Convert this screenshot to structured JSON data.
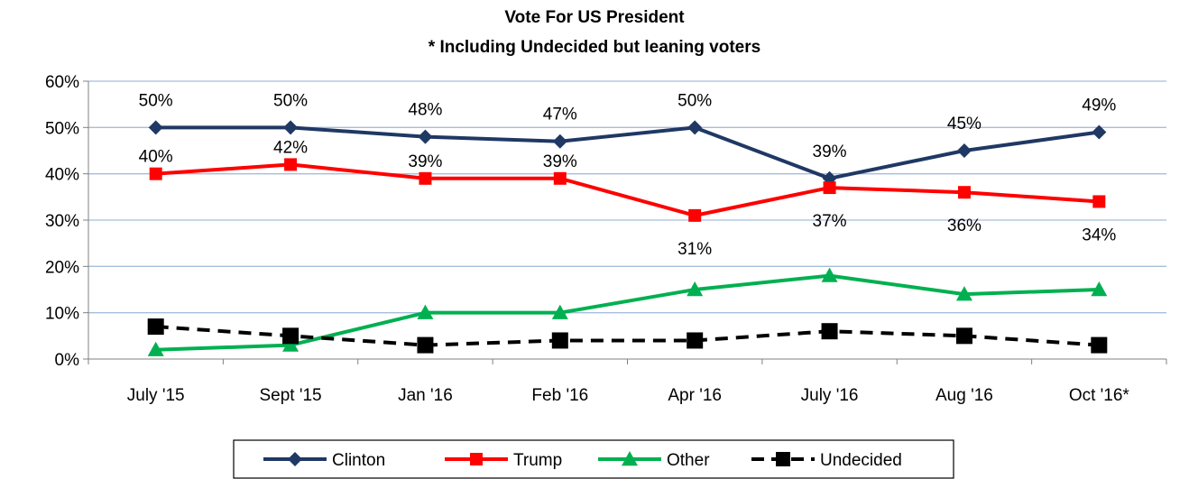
{
  "chart_data": {
    "type": "line",
    "title": "Vote For US President",
    "subtitle": "* Including Undecided but leaning voters",
    "xlabel": "",
    "ylabel": "",
    "categories": [
      "July '15",
      "Sept '15",
      "Jan '16",
      "Feb '16",
      "Apr '16",
      "July '16",
      "Aug '16",
      "Oct '16*"
    ],
    "y_ticks": [
      "0%",
      "10%",
      "20%",
      "30%",
      "40%",
      "50%",
      "60%"
    ],
    "ylim": [
      0,
      60
    ],
    "grid": true,
    "legend_position": "bottom",
    "series": [
      {
        "name": "Clinton",
        "color": "#1F3864",
        "marker": "diamond",
        "dash": false,
        "values": [
          50,
          50,
          48,
          47,
          50,
          39,
          45,
          49
        ],
        "labels": [
          "50%",
          "50%",
          "48%",
          "47%",
          "50%",
          "39%",
          "45%",
          "49%"
        ]
      },
      {
        "name": "Trump",
        "color": "#FF0000",
        "marker": "square",
        "dash": false,
        "values": [
          40,
          42,
          39,
          39,
          31,
          37,
          36,
          34
        ],
        "labels": [
          "40%",
          "42%",
          "39%",
          "39%",
          "31%",
          "37%",
          "36%",
          "34%"
        ]
      },
      {
        "name": "Other",
        "color": "#00B050",
        "marker": "triangle",
        "dash": false,
        "values": [
          2,
          3,
          10,
          10,
          15,
          18,
          14,
          15
        ]
      },
      {
        "name": "Undecided",
        "color": "#000000",
        "marker": "square",
        "dash": true,
        "values": [
          7,
          5,
          3,
          4,
          4,
          6,
          5,
          3
        ]
      }
    ]
  }
}
